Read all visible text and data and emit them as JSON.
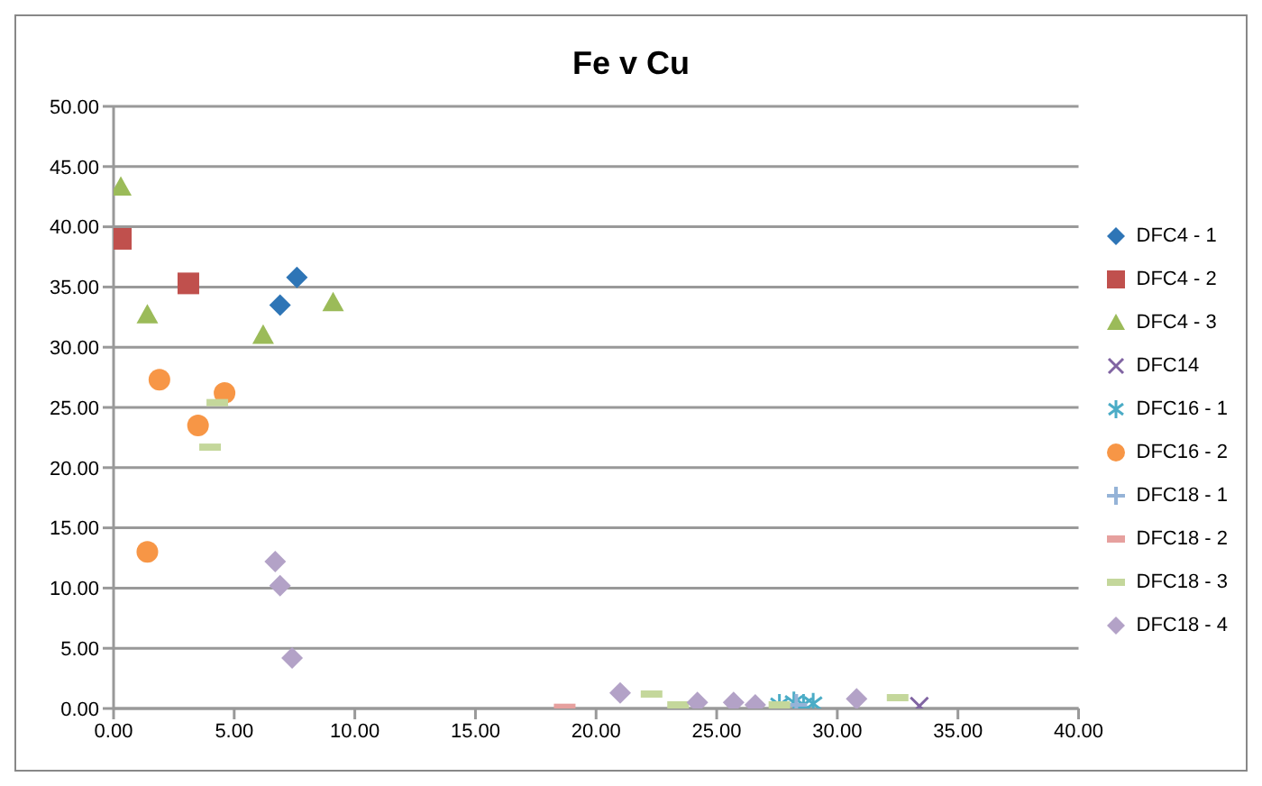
{
  "chart_data": {
    "type": "scatter",
    "title": "Fe v Cu",
    "xlim": [
      0,
      40
    ],
    "xticks": [
      {
        "value": 0,
        "label": "0.00"
      },
      {
        "value": 5,
        "label": "5.00"
      },
      {
        "value": 10,
        "label": "10.00"
      },
      {
        "value": 15,
        "label": "15.00"
      },
      {
        "value": 20,
        "label": "20.00"
      },
      {
        "value": 25,
        "label": "25.00"
      },
      {
        "value": 30,
        "label": "30.00"
      },
      {
        "value": 35,
        "label": "35.00"
      },
      {
        "value": 40,
        "label": "40.00"
      }
    ],
    "ylim": [
      0,
      50
    ],
    "yticks": [
      {
        "value": 0,
        "label": "0.00"
      },
      {
        "value": 5,
        "label": "5.00"
      },
      {
        "value": 10,
        "label": "10.00"
      },
      {
        "value": 15,
        "label": "15.00"
      },
      {
        "value": 20,
        "label": "20.00"
      },
      {
        "value": 25,
        "label": "25.00"
      },
      {
        "value": 30,
        "label": "30.00"
      },
      {
        "value": 35,
        "label": "35.00"
      },
      {
        "value": 40,
        "label": "40.00"
      },
      {
        "value": 45,
        "label": "45.00"
      },
      {
        "value": 50,
        "label": "50.00"
      }
    ],
    "grid": "y",
    "legend": "right",
    "series": [
      {
        "name": "DFC4 - 1",
        "color": "#2e75b6",
        "marker": "diamond",
        "x": [
          7.6,
          6.9
        ],
        "values": [
          35.8,
          33.5
        ]
      },
      {
        "name": "DFC4 - 2",
        "color": "#c0504d",
        "marker": "square",
        "x": [
          0.3,
          3.1
        ],
        "values": [
          39.0,
          35.3
        ]
      },
      {
        "name": "DFC4 - 3",
        "color": "#9bbb59",
        "marker": "triangle",
        "x": [
          0.3,
          1.4,
          6.2,
          9.1
        ],
        "values": [
          43.3,
          32.7,
          31.0,
          33.7
        ]
      },
      {
        "name": "DFC14",
        "color": "#8064a2",
        "marker": "cross",
        "x": [
          33.4
        ],
        "values": [
          0.2
        ]
      },
      {
        "name": "DFC16 - 1",
        "color": "#4bacc6",
        "x": [
          27.6,
          28.2,
          28.6,
          29.0
        ],
        "values": [
          0.3,
          0.5,
          0.3,
          0.4
        ]
      },
      {
        "name": "DFC16 - 2",
        "color": "#f79646",
        "marker": "circle",
        "x": [
          1.9,
          4.6,
          3.5,
          1.4
        ],
        "values": [
          27.3,
          26.2,
          23.5,
          13.0
        ]
      },
      {
        "name": "DFC18 - 1",
        "color": "#95b3d7",
        "marker": "plus",
        "x": [
          28.3
        ],
        "values": [
          0.3
        ]
      },
      {
        "name": "DFC18 - 2",
        "color": "#e6a09e",
        "x": [
          18.7
        ],
        "values": [
          0.1
        ]
      },
      {
        "name": "DFC18 - 3",
        "color": "#c4d79b",
        "x": [
          4.3,
          4.0,
          22.3,
          23.4,
          27.6,
          32.5
        ],
        "values": [
          25.4,
          21.7,
          1.2,
          0.3,
          0.3,
          0.9
        ]
      },
      {
        "name": "DFC18 - 4",
        "color": "#b3a2c7",
        "marker": "diamond",
        "x": [
          6.7,
          6.9,
          7.4,
          21.0,
          24.2,
          25.7,
          26.6,
          30.8
        ],
        "values": [
          12.2,
          10.2,
          4.2,
          1.3,
          0.5,
          0.5,
          0.3,
          0.8
        ]
      }
    ]
  }
}
